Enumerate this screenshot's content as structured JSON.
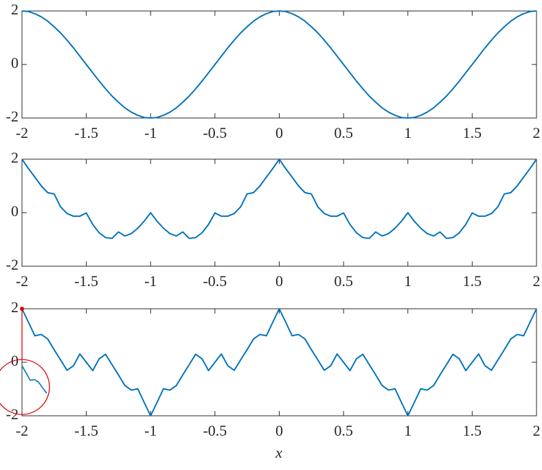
{
  "chart_data": [
    {
      "type": "line",
      "color": "#0072bd",
      "x": [
        -2,
        -1.95,
        -1.9,
        -1.85,
        -1.8,
        -1.75,
        -1.7,
        -1.65,
        -1.6,
        -1.55,
        -1.5,
        -1.45,
        -1.4,
        -1.35,
        -1.3,
        -1.25,
        -1.2,
        -1.15,
        -1.1,
        -1.05,
        -1,
        -0.95,
        -0.9,
        -0.85,
        -0.8,
        -0.75,
        -0.7,
        -0.65,
        -0.6,
        -0.55,
        -0.5,
        -0.45,
        -0.4,
        -0.35,
        -0.3,
        -0.25,
        -0.2,
        -0.15,
        -0.1,
        -0.05,
        0,
        0.05,
        0.1,
        0.15,
        0.2,
        0.25,
        0.3,
        0.35,
        0.4,
        0.45,
        0.5,
        0.55,
        0.6,
        0.65,
        0.7,
        0.75,
        0.8,
        0.85,
        0.9,
        0.95,
        1,
        1.05,
        1.1,
        1.15,
        1.2,
        1.25,
        1.3,
        1.35,
        1.4,
        1.45,
        1.5,
        1.55,
        1.6,
        1.65,
        1.7,
        1.75,
        1.8,
        1.85,
        1.9,
        1.95,
        2
      ],
      "values": [
        2,
        1.98,
        1.9,
        1.78,
        1.62,
        1.41,
        1.18,
        0.91,
        0.62,
        0.31,
        0,
        -0.31,
        -0.62,
        -0.91,
        -1.18,
        -1.41,
        -1.62,
        -1.78,
        -1.9,
        -1.98,
        -2,
        -1.98,
        -1.9,
        -1.78,
        -1.62,
        -1.41,
        -1.18,
        -0.91,
        -0.62,
        -0.31,
        0,
        0.31,
        0.62,
        0.91,
        1.18,
        1.41,
        1.62,
        1.78,
        1.9,
        1.98,
        2,
        1.98,
        1.9,
        1.78,
        1.62,
        1.41,
        1.18,
        0.91,
        0.62,
        0.31,
        0,
        -0.31,
        -0.62,
        -0.91,
        -1.18,
        -1.41,
        -1.62,
        -1.78,
        -1.9,
        -1.98,
        -2,
        -1.98,
        -1.9,
        -1.78,
        -1.62,
        -1.41,
        -1.18,
        -0.91,
        -0.62,
        -0.31,
        0,
        0.31,
        0.62,
        0.91,
        1.18,
        1.41,
        1.62,
        1.78,
        1.9,
        1.98,
        2
      ],
      "xlim": [
        -2,
        2
      ],
      "ylim": [
        -2,
        2
      ],
      "xticks": [
        -2,
        -1.5,
        -1,
        -0.5,
        0,
        0.5,
        1,
        1.5,
        2
      ],
      "yticks": [
        -2,
        0,
        2
      ]
    },
    {
      "type": "line",
      "color": "#0072bd",
      "x": [
        -2,
        -1.95,
        -1.9,
        -1.85,
        -1.8,
        -1.75,
        -1.7,
        -1.65,
        -1.6,
        -1.55,
        -1.5,
        -1.45,
        -1.4,
        -1.35,
        -1.3,
        -1.25,
        -1.2,
        -1.15,
        -1.1,
        -1.05,
        -1,
        -0.95,
        -0.9,
        -0.85,
        -0.8,
        -0.75,
        -0.7,
        -0.65,
        -0.6,
        -0.55,
        -0.5,
        -0.45,
        -0.4,
        -0.35,
        -0.3,
        -0.25,
        -0.2,
        -0.15,
        -0.1,
        -0.05,
        0,
        0.05,
        0.1,
        0.15,
        0.2,
        0.25,
        0.3,
        0.35,
        0.4,
        0.45,
        0.5,
        0.55,
        0.6,
        0.65,
        0.7,
        0.75,
        0.8,
        0.85,
        0.9,
        0.95,
        1,
        1.05,
        1.1,
        1.15,
        1.2,
        1.25,
        1.3,
        1.35,
        1.4,
        1.45,
        1.5,
        1.55,
        1.6,
        1.65,
        1.7,
        1.75,
        1.8,
        1.85,
        1.9,
        1.95,
        2
      ],
      "values": [
        2,
        1.65,
        1.33,
        1,
        0.75,
        0.7,
        0.22,
        -0.03,
        -0.13,
        -0.13,
        -0.01,
        -0.44,
        -0.75,
        -0.93,
        -0.96,
        -0.72,
        -0.87,
        -0.78,
        -0.58,
        -0.32,
        0,
        -0.32,
        -0.58,
        -0.78,
        -0.87,
        -0.72,
        -0.96,
        -0.93,
        -0.75,
        -0.44,
        -0.01,
        -0.13,
        -0.13,
        -0.03,
        0.22,
        0.7,
        0.75,
        1,
        1.33,
        1.65,
        2,
        1.65,
        1.33,
        1,
        0.75,
        0.7,
        0.22,
        -0.03,
        -0.13,
        -0.13,
        -0.01,
        -0.44,
        -0.75,
        -0.93,
        -0.96,
        -0.72,
        -0.87,
        -0.78,
        -0.58,
        -0.32,
        0,
        -0.32,
        -0.58,
        -0.78,
        -0.87,
        -0.72,
        -0.96,
        -0.93,
        -0.75,
        -0.44,
        -0.01,
        -0.13,
        -0.13,
        -0.03,
        0.22,
        0.7,
        0.75,
        1,
        1.33,
        1.65,
        2
      ],
      "xlim": [
        -2,
        2
      ],
      "ylim": [
        -2,
        2
      ],
      "xticks": [
        -2,
        -1.5,
        -1,
        -0.5,
        0,
        0.5,
        1,
        1.5,
        2
      ],
      "yticks": [
        -2,
        0,
        2
      ]
    },
    {
      "type": "line",
      "color": "#0072bd",
      "xlabel": "x",
      "x": [
        -2,
        -1.95,
        -1.9,
        -1.85,
        -1.8,
        -1.75,
        -1.7,
        -1.65,
        -1.6,
        -1.55,
        -1.5,
        -1.45,
        -1.4,
        -1.35,
        -1.3,
        -1.25,
        -1.2,
        -1.15,
        -1.1,
        -1.05,
        -1,
        -0.95,
        -0.9,
        -0.85,
        -0.8,
        -0.75,
        -0.7,
        -0.65,
        -0.6,
        -0.55,
        -0.5,
        -0.45,
        -0.4,
        -0.35,
        -0.3,
        -0.25,
        -0.2,
        -0.15,
        -0.1,
        -0.05,
        0,
        0.05,
        0.1,
        0.15,
        0.2,
        0.25,
        0.3,
        0.35,
        0.4,
        0.45,
        0.5,
        0.55,
        0.6,
        0.65,
        0.7,
        0.75,
        0.8,
        0.85,
        0.9,
        0.95,
        1,
        1.05,
        1.1,
        1.15,
        1.2,
        1.25,
        1.3,
        1.35,
        1.4,
        1.45,
        1.5,
        1.55,
        1.6,
        1.65,
        1.7,
        1.75,
        1.8,
        1.85,
        1.9,
        1.95,
        2
      ],
      "values": [
        2,
        1.5,
        0.99,
        1.04,
        0.87,
        0.47,
        0.09,
        -0.3,
        -0.13,
        0.31,
        0,
        -0.31,
        0.13,
        0.3,
        -0.09,
        -0.47,
        -0.87,
        -1.04,
        -0.99,
        -1.5,
        -2,
        -1.5,
        -0.99,
        -1.04,
        -0.87,
        -0.47,
        -0.09,
        0.3,
        0.13,
        -0.31,
        0,
        0.31,
        -0.13,
        -0.3,
        0.09,
        0.47,
        0.87,
        1.04,
        0.99,
        1.5,
        2,
        1.5,
        0.99,
        1.04,
        0.87,
        0.47,
        0.09,
        -0.3,
        -0.13,
        0.31,
        0,
        -0.31,
        0.13,
        0.3,
        -0.09,
        -0.47,
        -0.87,
        -1.04,
        -0.99,
        -1.5,
        -2,
        -1.5,
        -0.99,
        -1.04,
        -0.87,
        -0.47,
        -0.09,
        0.3,
        0.13,
        -0.31,
        0,
        0.31,
        -0.13,
        -0.3,
        0.09,
        0.47,
        0.87,
        1.04,
        0.99,
        1.5,
        2
      ],
      "xlim": [
        -2,
        2
      ],
      "ylim": [
        -2,
        2
      ],
      "xticks": [
        -2,
        -1.5,
        -1,
        -0.5,
        0,
        0.5,
        1,
        1.5,
        2
      ],
      "yticks": [
        -2,
        0,
        2
      ]
    }
  ]
}
